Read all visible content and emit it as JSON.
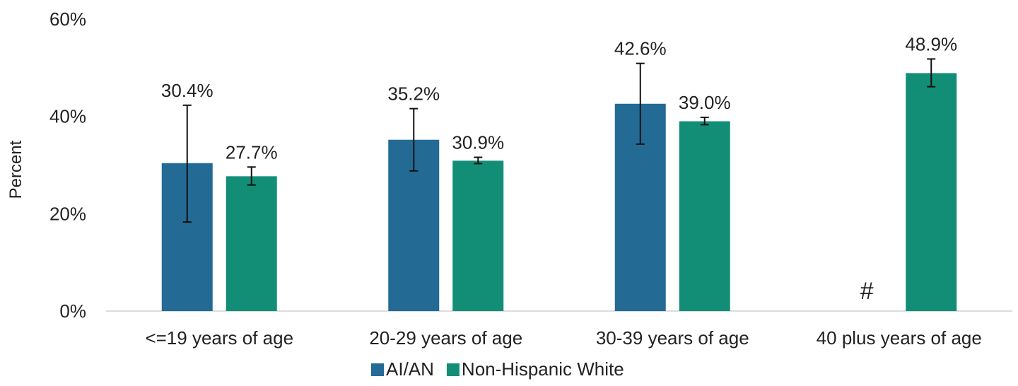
{
  "chart_data": {
    "type": "bar",
    "title": "",
    "xlabel": "",
    "ylabel": "Percent",
    "ylim": [
      0,
      60
    ],
    "yticks": [
      "0%",
      "20%",
      "40%",
      "60%"
    ],
    "ytick_values": [
      0,
      20,
      40,
      60
    ],
    "grid": false,
    "legend_position": "bottom",
    "categories": [
      "<=19 years of age",
      "20-29 years of age",
      "30-39 years of age",
      "40 plus years of age"
    ],
    "series": [
      {
        "name": "AI/AN",
        "color": "#236A95",
        "values": [
          30.4,
          35.2,
          42.6,
          null
        ],
        "labels": [
          "30.4%",
          "35.2%",
          "42.6%",
          ""
        ],
        "error_low": [
          18.3,
          28.8,
          34.3,
          null
        ],
        "error_high": [
          42.3,
          41.6,
          50.9,
          null
        ],
        "suppressed_marker": [
          "",
          "",
          "",
          "#"
        ]
      },
      {
        "name": "Non-Hispanic White",
        "color": "#138E76",
        "values": [
          27.7,
          30.9,
          39.0,
          48.9
        ],
        "labels": [
          "27.7%",
          "30.9%",
          "39.0%",
          "48.9%"
        ],
        "error_low": [
          25.9,
          30.3,
          38.3,
          46.1
        ],
        "error_high": [
          29.6,
          31.6,
          39.8,
          51.8
        ],
        "suppressed_marker": [
          "",
          "",
          "",
          ""
        ]
      }
    ]
  }
}
